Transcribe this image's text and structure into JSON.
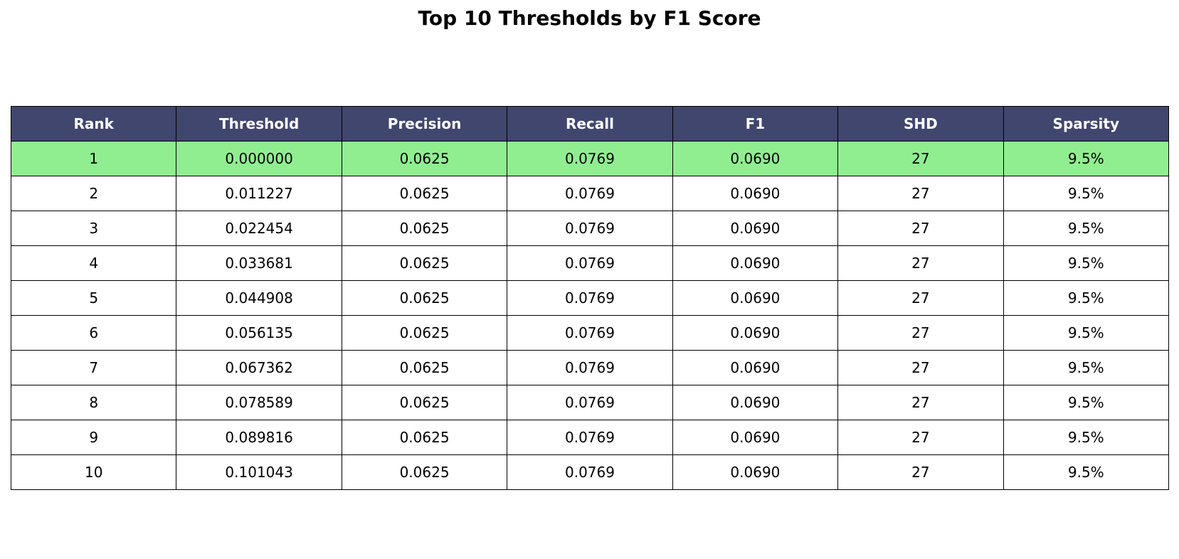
{
  "title": "Top 10 Thresholds by F1 Score",
  "colors": {
    "header_bg": "#40466e",
    "header_text": "#ffffff",
    "best_row_bg": "#90ee90",
    "row_bg": "#ffffff",
    "border": "#000000"
  },
  "chart_data": {
    "type": "table",
    "title": "Top 10 Thresholds by F1 Score",
    "columns": [
      "Rank",
      "Threshold",
      "Precision",
      "Recall",
      "F1",
      "SHD",
      "Sparsity"
    ],
    "rows": [
      [
        "1",
        "0.000000",
        "0.0625",
        "0.0769",
        "0.0690",
        "27",
        "9.5%"
      ],
      [
        "2",
        "0.011227",
        "0.0625",
        "0.0769",
        "0.0690",
        "27",
        "9.5%"
      ],
      [
        "3",
        "0.022454",
        "0.0625",
        "0.0769",
        "0.0690",
        "27",
        "9.5%"
      ],
      [
        "4",
        "0.033681",
        "0.0625",
        "0.0769",
        "0.0690",
        "27",
        "9.5%"
      ],
      [
        "5",
        "0.044908",
        "0.0625",
        "0.0769",
        "0.0690",
        "27",
        "9.5%"
      ],
      [
        "6",
        "0.056135",
        "0.0625",
        "0.0769",
        "0.0690",
        "27",
        "9.5%"
      ],
      [
        "7",
        "0.067362",
        "0.0625",
        "0.0769",
        "0.0690",
        "27",
        "9.5%"
      ],
      [
        "8",
        "0.078589",
        "0.0625",
        "0.0769",
        "0.0690",
        "27",
        "9.5%"
      ],
      [
        "9",
        "0.089816",
        "0.0625",
        "0.0769",
        "0.0690",
        "27",
        "9.5%"
      ],
      [
        "10",
        "0.101043",
        "0.0625",
        "0.0769",
        "0.0690",
        "27",
        "9.5%"
      ]
    ],
    "highlighted_row": 0
  }
}
